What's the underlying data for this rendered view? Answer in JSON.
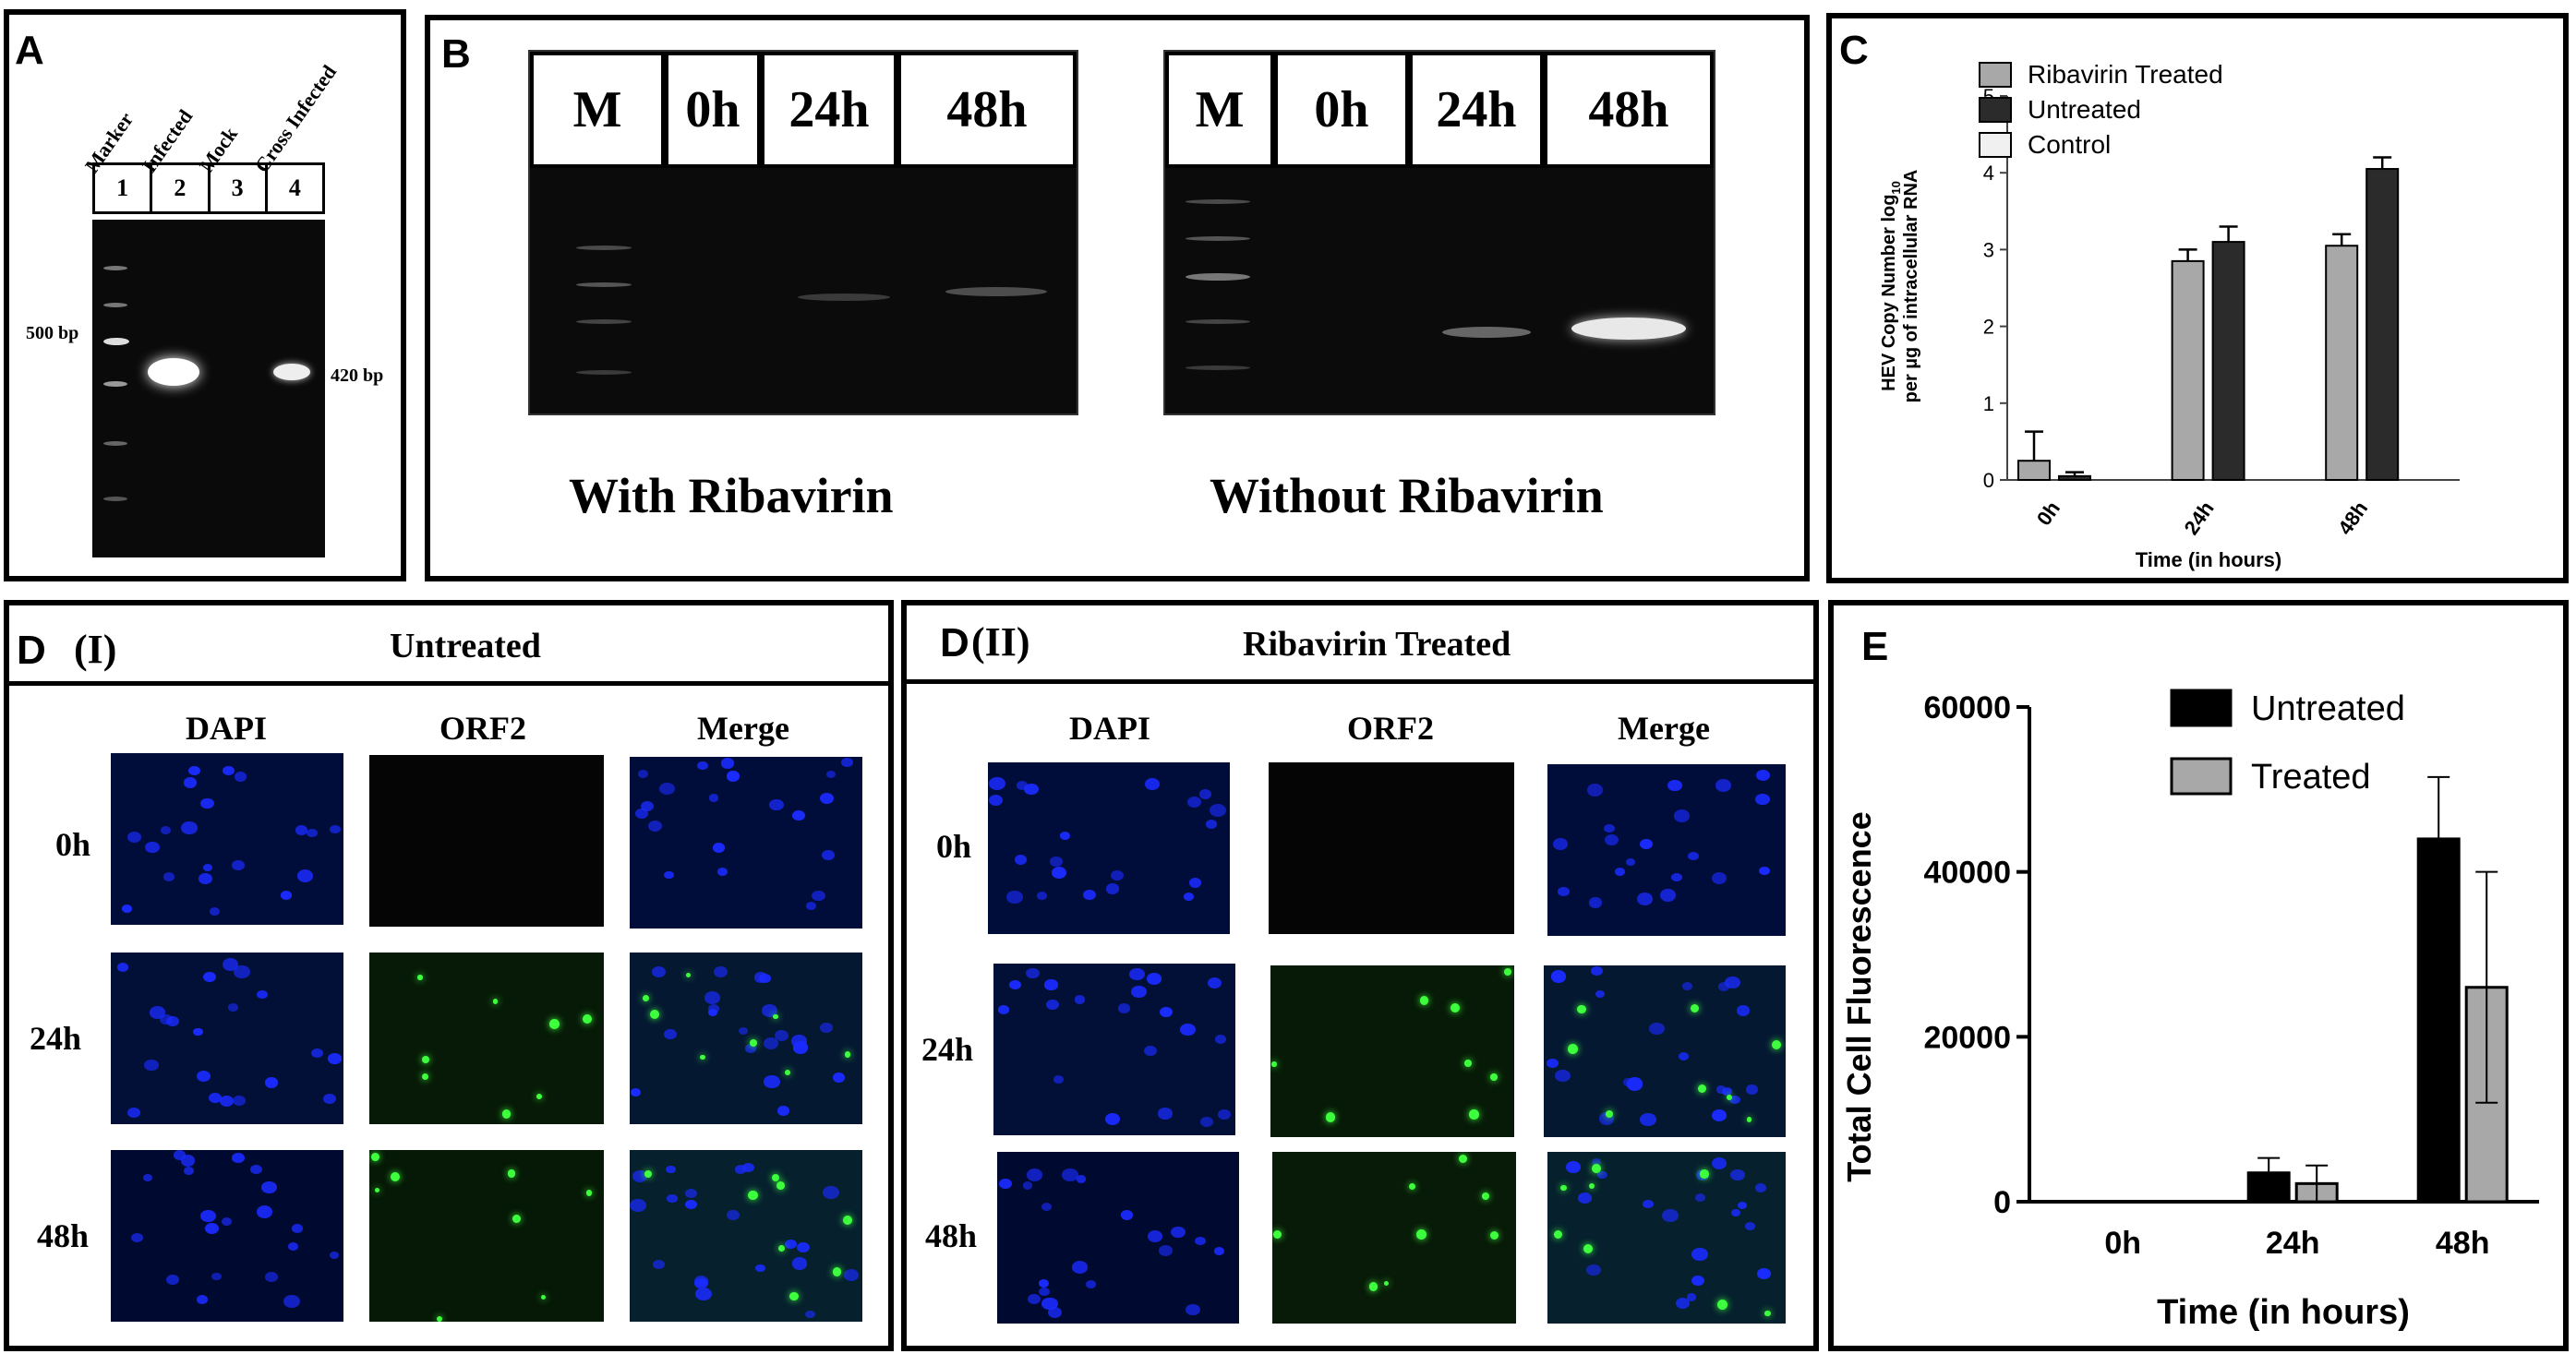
{
  "panel_a": {
    "label": "A",
    "lanes": [
      "Marker",
      "Infected",
      "Mock",
      "Cross Infected"
    ],
    "numbers": [
      "1",
      "2",
      "3",
      "4"
    ],
    "marker_size": "500 bp",
    "product_size": "420 bp"
  },
  "panel_b": {
    "label": "B",
    "lane_heads": [
      "M",
      "0h",
      "24h",
      "48h"
    ],
    "left_caption": "With Ribavirin",
    "right_caption": "Without Ribavirin"
  },
  "panel_c": {
    "label": "C",
    "ylabel_line1": "HEV Copy Number log",
    "ylabel_sub": "10",
    "ylabel_line2": "per µg of intracellular RNA",
    "xlabel": "Time (in hours)"
  },
  "panel_d1": {
    "label": "D",
    "roman": "(I)",
    "title": "Untreated",
    "columns": [
      "DAPI",
      "ORF2",
      "Merge"
    ],
    "rows": [
      "0h",
      "24h",
      "48h"
    ]
  },
  "panel_d2": {
    "label": "D",
    "roman": "(II)",
    "title": "Ribavirin Treated",
    "columns": [
      "DAPI",
      "ORF2",
      "Merge"
    ],
    "rows": [
      "0h",
      "24h",
      "48h"
    ]
  },
  "panel_e": {
    "label": "E",
    "ylabel": "Total Cell Fluorescence",
    "xlabel": "Time (in hours)"
  },
  "chart_data": [
    {
      "panel": "C",
      "type": "bar",
      "categories": [
        "0h",
        "24h",
        "48h"
      ],
      "series": [
        {
          "name": "Ribavirin Treated",
          "color": "#a8a8a8",
          "values": [
            0.25,
            2.85,
            3.05
          ],
          "errors": [
            0.38,
            0.15,
            0.15
          ]
        },
        {
          "name": "Untreated",
          "color": "#2b2b2b",
          "values": [
            0.05,
            3.1,
            4.05
          ],
          "errors": [
            0.05,
            0.2,
            0.15
          ]
        },
        {
          "name": "Control",
          "color": "#f0f0f0",
          "values": [
            0,
            0,
            0
          ],
          "errors": [
            0,
            0,
            0
          ]
        }
      ],
      "xlabel": "Time (in hours)",
      "ylabel": "HEV Copy Number log10 per µg of intracellular RNA",
      "ylim": [
        0,
        5
      ],
      "yticks": [
        "0",
        "1",
        "2",
        "3",
        "4",
        "5"
      ],
      "legend": "top-left"
    },
    {
      "panel": "E",
      "type": "bar",
      "categories": [
        "0h",
        "24h",
        "48h"
      ],
      "series": [
        {
          "name": "Untreated",
          "color": "#000000",
          "values": [
            0,
            3500,
            44000
          ],
          "errors": [
            0,
            1800,
            7500
          ]
        },
        {
          "name": "Treated",
          "color": "#a8a8a8",
          "values": [
            0,
            2200,
            26000
          ],
          "errors": [
            0,
            2200,
            14000
          ]
        }
      ],
      "xlabel": "Time (in hours)",
      "ylabel": "Total Cell Fluorescence",
      "ylim": [
        0,
        60000
      ],
      "yticks": [
        "0",
        "20000",
        "40000",
        "60000"
      ],
      "legend": "top-right"
    }
  ]
}
